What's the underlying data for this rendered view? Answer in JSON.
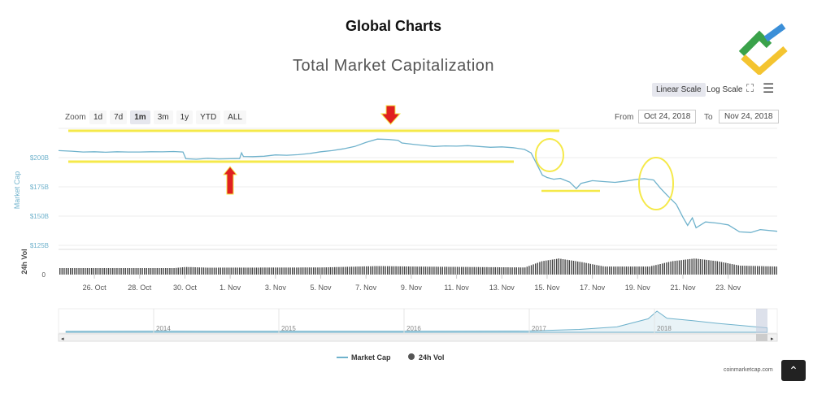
{
  "header": {
    "title": "Global Charts",
    "chart_title": "Total Market Capitalization"
  },
  "toolbar": {
    "zoom_label": "Zoom",
    "zoom_options": [
      "1d",
      "7d",
      "1m",
      "3m",
      "1y",
      "YTD",
      "ALL"
    ],
    "zoom_selected": "1m",
    "linear_scale": "Linear Scale",
    "log_scale": "Log Scale",
    "from_label": "From",
    "from_value": "Oct 24, 2018",
    "to_label": "To",
    "to_value": "Nov 24, 2018",
    "fullscreen_icon": "expand-icon",
    "menu_icon": "hamburger-icon"
  },
  "legend": {
    "market_cap": "Market Cap",
    "vol": "24h Vol"
  },
  "credit": "coinmarketcap.com",
  "colors": {
    "line": "#6fb2cc",
    "volume": "#444444",
    "annotation": "#f5e94a",
    "arrow": "#e02020"
  },
  "chart_data": {
    "type": "line",
    "ylabel": "Market Cap",
    "y2label": "24h Vol",
    "yticks": [
      "$125B",
      "$150B",
      "$175B",
      "$200B"
    ],
    "ytick_values": [
      125,
      150,
      175,
      200
    ],
    "y2ticks": [
      "0"
    ],
    "xticks": [
      "26. Oct",
      "28. Oct",
      "30. Oct",
      "1. Nov",
      "3. Nov",
      "5. Nov",
      "7. Nov",
      "9. Nov",
      "11. Nov",
      "13. Nov",
      "15. Nov",
      "17. Nov",
      "19. Nov",
      "21. Nov",
      "23. Nov"
    ],
    "xtick_dates": [
      "2018-10-26",
      "2018-10-28",
      "2018-10-30",
      "2018-11-01",
      "2018-11-03",
      "2018-11-05",
      "2018-11-07",
      "2018-11-09",
      "2018-11-11",
      "2018-11-13",
      "2018-11-15",
      "2018-11-17",
      "2018-11-19",
      "2018-11-21",
      "2018-11-23"
    ],
    "xlim": [
      "2018-10-24T10:00",
      "2018-11-25T04:00"
    ],
    "series": [
      {
        "name": "Market Cap",
        "unit": "USD billions",
        "points": [
          [
            "2018-10-24T10:00",
            206
          ],
          [
            "2018-10-25T00:00",
            205.5
          ],
          [
            "2018-10-25T12:00",
            204.8
          ],
          [
            "2018-10-26T00:00",
            205
          ],
          [
            "2018-10-26T12:00",
            204.6
          ],
          [
            "2018-10-27T00:00",
            205
          ],
          [
            "2018-10-27T12:00",
            204.8
          ],
          [
            "2018-10-28T00:00",
            204.8
          ],
          [
            "2018-10-28T12:00",
            205
          ],
          [
            "2018-10-29T00:00",
            204.9
          ],
          [
            "2018-10-29T12:00",
            205.2
          ],
          [
            "2018-10-29T22:00",
            204.8
          ],
          [
            "2018-10-30T01:00",
            199
          ],
          [
            "2018-10-30T12:00",
            198.6
          ],
          [
            "2018-10-31T00:00",
            199.3
          ],
          [
            "2018-10-31T12:00",
            198.9
          ],
          [
            "2018-11-01T00:00",
            199
          ],
          [
            "2018-11-01T10:00",
            199.2
          ],
          [
            "2018-11-01T12:00",
            204
          ],
          [
            "2018-11-01T14:00",
            201
          ],
          [
            "2018-11-02T00:00",
            200.8
          ],
          [
            "2018-11-02T12:00",
            201.2
          ],
          [
            "2018-11-03T00:00",
            202.3
          ],
          [
            "2018-11-03T12:00",
            202
          ],
          [
            "2018-11-04T00:00",
            202.5
          ],
          [
            "2018-11-04T12:00",
            203.5
          ],
          [
            "2018-11-05T00:00",
            205
          ],
          [
            "2018-11-05T12:00",
            206
          ],
          [
            "2018-11-06T00:00",
            207.5
          ],
          [
            "2018-11-06T12:00",
            209.5
          ],
          [
            "2018-11-07T00:00",
            213
          ],
          [
            "2018-11-07T12:00",
            215.8
          ],
          [
            "2018-11-08T00:00",
            215.5
          ],
          [
            "2018-11-08T10:00",
            214.8
          ],
          [
            "2018-11-08T14:00",
            212.5
          ],
          [
            "2018-11-09T00:00",
            211.5
          ],
          [
            "2018-11-09T12:00",
            210.5
          ],
          [
            "2018-11-10T00:00",
            209.5
          ],
          [
            "2018-11-10T12:00",
            210
          ],
          [
            "2018-11-11T00:00",
            209.8
          ],
          [
            "2018-11-11T12:00",
            210.2
          ],
          [
            "2018-11-12T00:00",
            209.5
          ],
          [
            "2018-11-12T12:00",
            208.8
          ],
          [
            "2018-11-13T00:00",
            209.2
          ],
          [
            "2018-11-13T12:00",
            208.5
          ],
          [
            "2018-11-14T00:00",
            207
          ],
          [
            "2018-11-14T07:00",
            204
          ],
          [
            "2018-11-14T14:00",
            193
          ],
          [
            "2018-11-14T19:00",
            185
          ],
          [
            "2018-11-15T00:00",
            183
          ],
          [
            "2018-11-15T07:00",
            181.5
          ],
          [
            "2018-11-15T14:00",
            182.2
          ],
          [
            "2018-11-16T00:00",
            179
          ],
          [
            "2018-11-16T07:00",
            173.5
          ],
          [
            "2018-11-16T12:00",
            178
          ],
          [
            "2018-11-17T00:00",
            180.3
          ],
          [
            "2018-11-17T12:00",
            179.5
          ],
          [
            "2018-11-18T00:00",
            178.8
          ],
          [
            "2018-11-18T12:00",
            180
          ],
          [
            "2018-11-19T00:00",
            181.5
          ],
          [
            "2018-11-19T07:00",
            182
          ],
          [
            "2018-11-19T17:00",
            180.8
          ],
          [
            "2018-11-20T00:00",
            174
          ],
          [
            "2018-11-20T07:00",
            168
          ],
          [
            "2018-11-20T17:00",
            160
          ],
          [
            "2018-11-21T00:00",
            149
          ],
          [
            "2018-11-21T05:00",
            142
          ],
          [
            "2018-11-21T10:00",
            148.5
          ],
          [
            "2018-11-21T14:00",
            140
          ],
          [
            "2018-11-22T00:00",
            145
          ],
          [
            "2018-11-22T12:00",
            144
          ],
          [
            "2018-11-23T00:00",
            142.5
          ],
          [
            "2018-11-23T12:00",
            136.5
          ],
          [
            "2018-11-24T00:00",
            136
          ],
          [
            "2018-11-24T10:00",
            138.5
          ],
          [
            "2018-11-25T04:00",
            137
          ]
        ]
      },
      {
        "name": "24h Vol",
        "unit": "USD billions",
        "type": "column",
        "points": [
          [
            "2018-10-24T10:00",
            14.5
          ],
          [
            "2018-10-29T12:00",
            14.5
          ],
          [
            "2018-10-30T00:00",
            17
          ],
          [
            "2018-10-31T00:00",
            15.5
          ],
          [
            "2018-11-05T00:00",
            16
          ],
          [
            "2018-11-07T12:00",
            19
          ],
          [
            "2018-11-09T00:00",
            18
          ],
          [
            "2018-11-14T00:00",
            16
          ],
          [
            "2018-11-14T18:00",
            30
          ],
          [
            "2018-11-15T12:00",
            36
          ],
          [
            "2018-11-16T12:00",
            28
          ],
          [
            "2018-11-17T12:00",
            18
          ],
          [
            "2018-11-19T12:00",
            18
          ],
          [
            "2018-11-20T12:00",
            30
          ],
          [
            "2018-11-21T12:00",
            36
          ],
          [
            "2018-11-22T12:00",
            30
          ],
          [
            "2018-11-23T12:00",
            20
          ],
          [
            "2018-11-25T04:00",
            18
          ]
        ]
      }
    ]
  },
  "navigator": {
    "years": [
      "2014",
      "2015",
      "2016",
      "2017",
      "2018"
    ],
    "points": [
      [
        2013.3,
        2
      ],
      [
        2014.0,
        12
      ],
      [
        2014.5,
        8
      ],
      [
        2015.0,
        5
      ],
      [
        2016.0,
        7
      ],
      [
        2017.0,
        18
      ],
      [
        2017.4,
        80
      ],
      [
        2017.7,
        180
      ],
      [
        2017.95,
        500
      ],
      [
        2018.02,
        800
      ],
      [
        2018.1,
        520
      ],
      [
        2018.3,
        430
      ],
      [
        2018.5,
        320
      ],
      [
        2018.7,
        230
      ],
      [
        2018.9,
        140
      ]
    ]
  }
}
